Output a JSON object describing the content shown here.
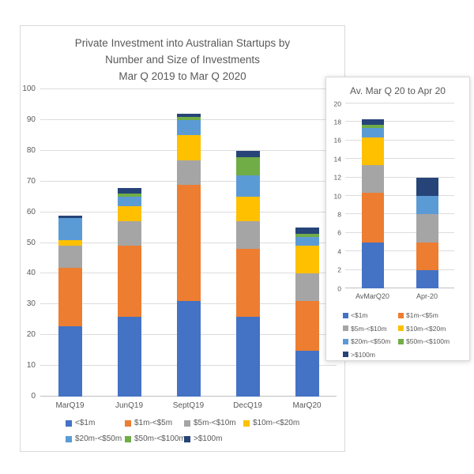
{
  "chart_data": [
    {
      "type": "bar",
      "stacked": true,
      "title": "Private Investment into Australian Startups by Number and Size of Investments Mar Q 2019 to Mar Q 2020",
      "title_lines": [
        "Private Investment into Australian Startups by",
        "Number and Size of Investments",
        "Mar Q 2019 to Mar Q 2020"
      ],
      "categories": [
        "MarQ19",
        "JunQ19",
        "SeptQ19",
        "DecQ19",
        "MarQ20"
      ],
      "series": [
        {
          "name": "<$1m",
          "color": "#4472C4",
          "values": [
            23,
            26,
            31,
            26,
            15
          ]
        },
        {
          "name": "$1m-<$5m",
          "color": "#ED7D31",
          "values": [
            19,
            23,
            38,
            22,
            16
          ]
        },
        {
          "name": "$5m-<$10m",
          "color": "#A5A5A5",
          "values": [
            7,
            8,
            8,
            9,
            9
          ]
        },
        {
          "name": "$10m-<$20m",
          "color": "#FFC000",
          "values": [
            2,
            5,
            8,
            8,
            9
          ]
        },
        {
          "name": "$20m-<$50m",
          "color": "#5B9BD5",
          "values": [
            7,
            3,
            5,
            7,
            3
          ]
        },
        {
          "name": "$50m-<$100m",
          "color": "#70AD47",
          "values": [
            0,
            1,
            1,
            6,
            1
          ]
        },
        {
          "name": ">$100m",
          "color": "#264478",
          "values": [
            1,
            2,
            1,
            2,
            2
          ]
        }
      ],
      "totals": [
        59,
        68,
        92,
        80,
        55
      ],
      "xlabel": "",
      "ylabel": "",
      "ylim": [
        0,
        100
      ],
      "yticks": [
        0,
        10,
        20,
        30,
        40,
        50,
        60,
        70,
        80,
        90,
        100
      ],
      "grid": true,
      "legend_position": "bottom",
      "legend_rows": [
        [
          0,
          1,
          2,
          3
        ],
        [
          4,
          5,
          6
        ]
      ]
    },
    {
      "type": "bar",
      "stacked": true,
      "title": "Av. Mar Q 20 to Apr 20",
      "title_lines": [
        "Av. Mar Q 20 to Apr 20"
      ],
      "categories": [
        "AvMarQ20",
        "Apr-20"
      ],
      "series": [
        {
          "name": "<$1m",
          "color": "#4472C4",
          "values": [
            5,
            2
          ]
        },
        {
          "name": "$1m-<$5m",
          "color": "#ED7D31",
          "values": [
            5.33,
            3
          ]
        },
        {
          "name": "$5m-<$10m",
          "color": "#A5A5A5",
          "values": [
            3,
            3
          ]
        },
        {
          "name": "$10m-<$20m",
          "color": "#FFC000",
          "values": [
            3,
            0
          ]
        },
        {
          "name": "$20m-<$50m",
          "color": "#5B9BD5",
          "values": [
            1,
            2
          ]
        },
        {
          "name": "$50m-<$100m",
          "color": "#70AD47",
          "values": [
            0.33,
            0
          ]
        },
        {
          "name": ">$100m",
          "color": "#264478",
          "values": [
            0.67,
            2
          ]
        }
      ],
      "totals": [
        18.33,
        12
      ],
      "xlabel": "",
      "ylabel": "",
      "ylim": [
        0,
        20
      ],
      "yticks": [
        0,
        2,
        4,
        6,
        8,
        10,
        12,
        14,
        16,
        18,
        20
      ],
      "grid": true,
      "legend_position": "bottom",
      "legend_rows": [
        [
          0,
          1
        ],
        [
          2,
          3
        ],
        [
          4,
          5
        ],
        [
          6
        ]
      ]
    }
  ],
  "colors": {
    "text": "#595959",
    "gridline": "#DCDCDC",
    "axis_line": "#BFBFBF",
    "panel_border": "#D9D9D9",
    "background": "#FFFFFF"
  }
}
